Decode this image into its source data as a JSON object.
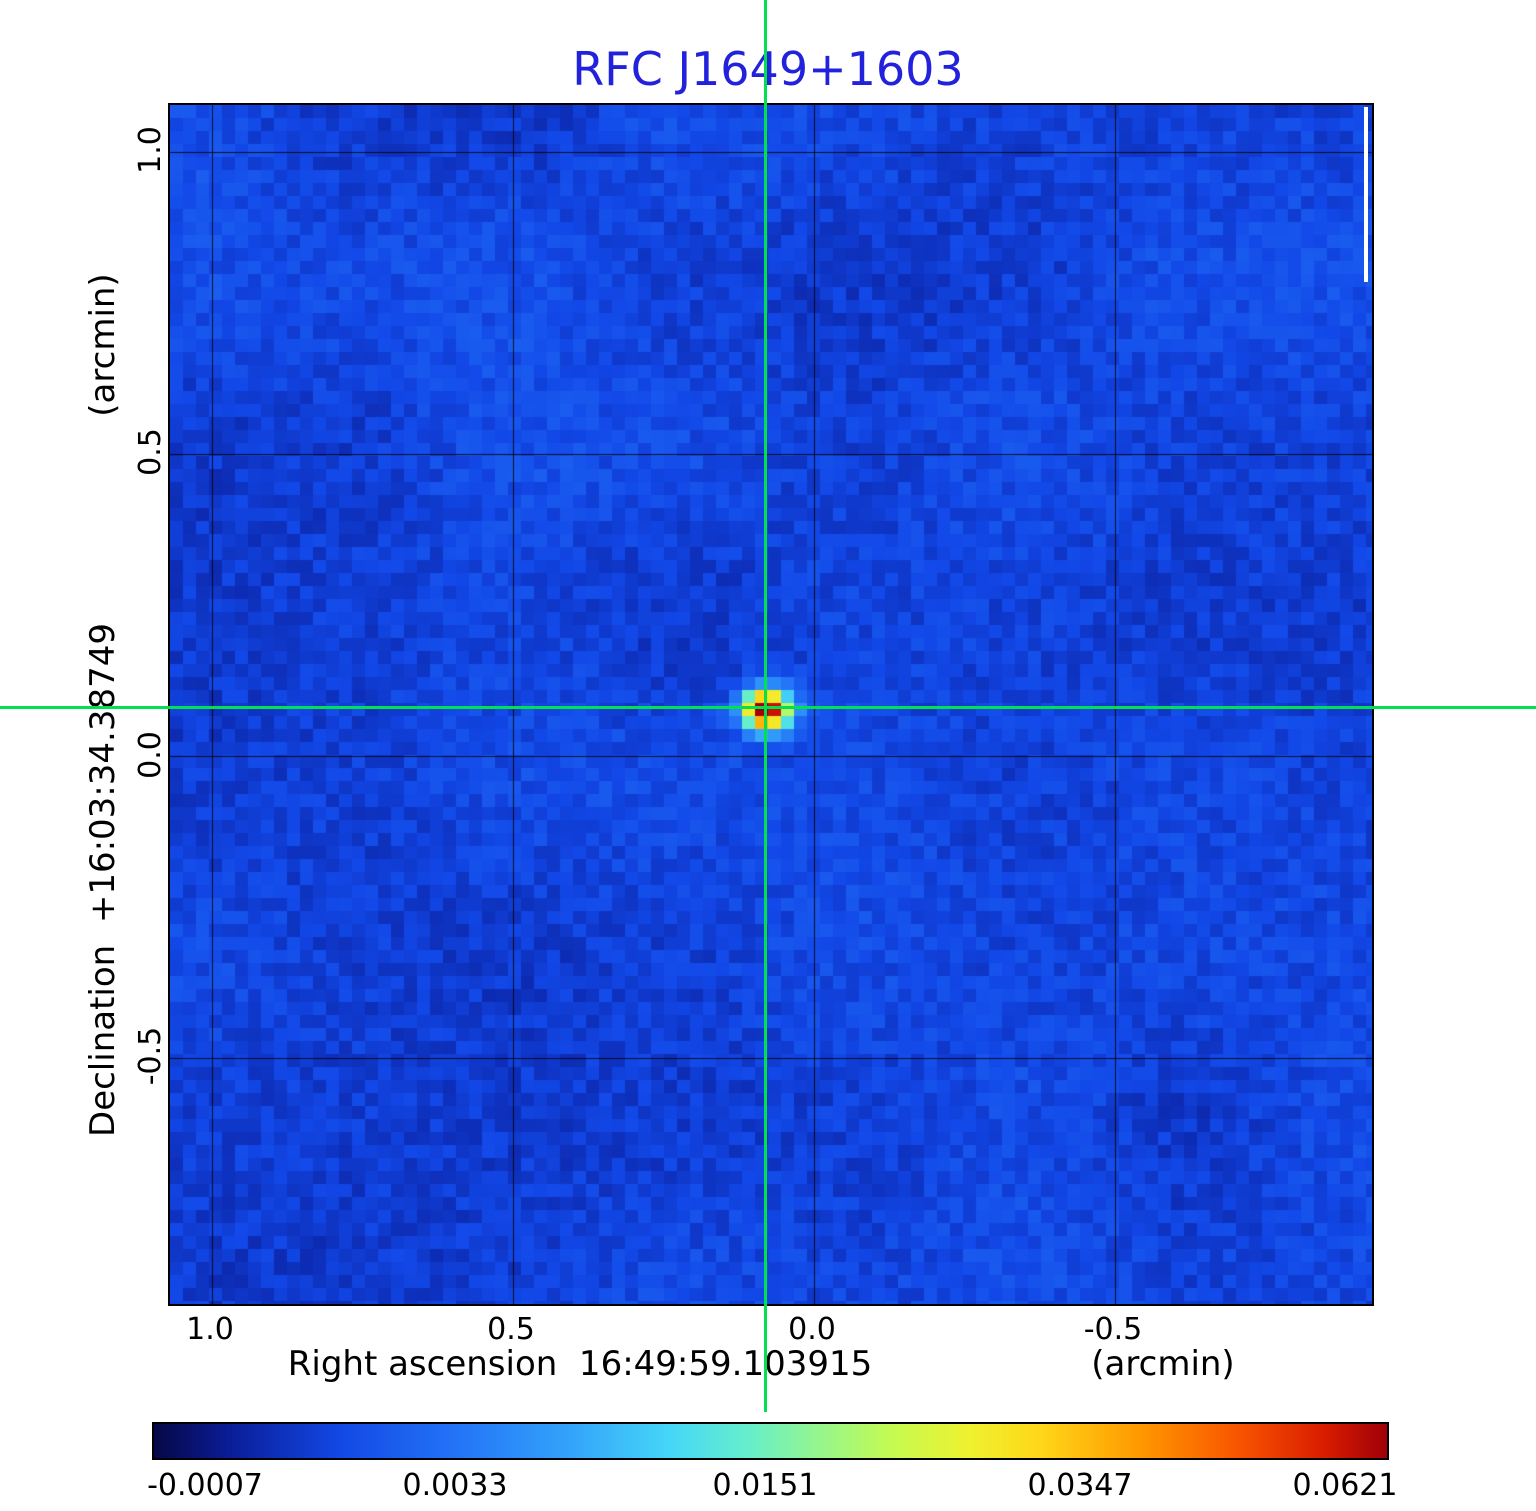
{
  "title": "RFC J1649+1603",
  "plot": {
    "title_color": "#2222dd",
    "crosshair_color": "#00e050"
  },
  "axes": {
    "x": {
      "label": "Right ascension  16:49:59.103915",
      "unit": "(arcmin)",
      "ticks": [
        "1.0",
        "0.5",
        "0.0",
        "-0.5"
      ]
    },
    "y": {
      "label": "Declination  +16:03:34.38749",
      "unit": "(arcmin)",
      "ticks": [
        "1.0",
        "0.5",
        "0.0",
        "-0.5"
      ]
    }
  },
  "colorbar": {
    "ticks": [
      "-0.0007",
      "0.0033",
      "0.0151",
      "0.0347",
      "0.0621"
    ]
  },
  "chart_data": {
    "type": "heatmap",
    "title": "RFC J1649+1603",
    "xlabel": "Right ascension 16:49:59.103915 (arcmin)",
    "ylabel": "Declination +16:03:34.38749 (arcmin)",
    "x_ticks_arcmin": [
      1.0,
      0.5,
      0.0,
      -0.5
    ],
    "y_ticks_arcmin": [
      1.0,
      0.5,
      0.0,
      -0.5
    ],
    "xlim_arcmin": [
      1.07,
      -0.93
    ],
    "ylim_arcmin": [
      -0.9,
      1.08
    ],
    "grid": true,
    "colorbar_ticks": [
      -0.0007,
      0.0033,
      0.0151,
      0.0347,
      0.0621
    ],
    "value_min": -0.0007,
    "value_max": 0.0621,
    "colormap": "rainbow (dark blue - blue - cyan - green - yellow - orange - red)",
    "background": "blue noise field near zero flux",
    "source": {
      "x_arcmin": 0.08,
      "y_arcmin": 0.08,
      "peak_value": 0.0621,
      "description": "single compact point source at crosshair intersection"
    },
    "crosshair_arcmin": {
      "x": 0.08,
      "y": 0.08
    }
  }
}
